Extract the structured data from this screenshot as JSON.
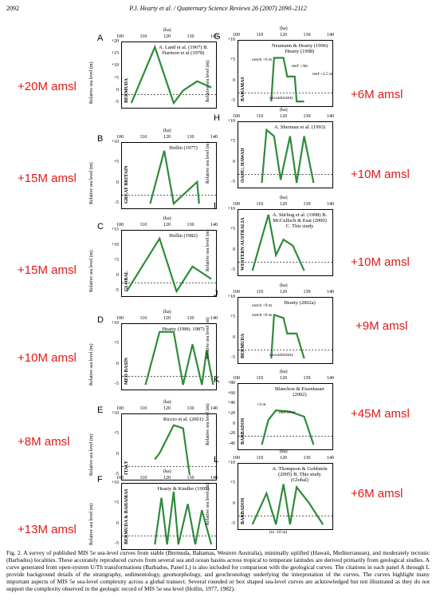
{
  "header": {
    "page_number": "2092",
    "journal": "P.J. Hearty et al. / Quaternary Science Reviews 26 (2007) 2090–2112"
  },
  "axis": {
    "ka_label": "(ka)",
    "ylabel": "Relative sea level (m)",
    "x_ticks": [
      "100",
      "110",
      "120",
      "130",
      "140"
    ]
  },
  "panels": {
    "A": {
      "letter": "A",
      "region": "BERMUDA",
      "cite": "A. Land et al. (1967)\nB. Harmon et al (1978)",
      "yt": [
        "+20",
        "+15",
        "+10",
        "+5",
        "0",
        "-5"
      ],
      "amsl": "+20M amsl"
    },
    "B": {
      "letter": "B",
      "region": "GREAT BRITAIN",
      "cite": "Hollin (1977)",
      "yt": [
        "+10",
        "+5",
        "0",
        "-5"
      ],
      "amsl": "+15M amsl"
    },
    "C": {
      "letter": "C",
      "region": "GLOBAL",
      "cite": "Hollin (1982)",
      "yt": [
        "+15",
        "+10",
        "+5",
        "0",
        "-5"
      ],
      "amsl": "+15M amsl"
    },
    "D": {
      "letter": "D",
      "region": "MED BASIN",
      "cite": "Hearty (1986; 1987)",
      "yt": [
        "+10",
        "+5",
        "0",
        "-5"
      ],
      "amsl": "+10M amsl"
    },
    "E": {
      "letter": "E",
      "region": "ITALY",
      "cite": "Riccio et al. (2001)",
      "yt": [
        "+10",
        "+5",
        "0",
        "-5"
      ],
      "amsl": "+8M amsl"
    },
    "F": {
      "letter": "F",
      "region": "BERMUDA & BAHAMAS",
      "cite": "Hearty & Kindler (1995)",
      "yt": [
        "+10",
        "+5",
        "0",
        "-5"
      ],
      "amsl": "+13M amsl"
    },
    "G": {
      "letter": "G",
      "region": "BAHAMAS",
      "cite": "Neumann & Hearty (1996) Hearty (1998)",
      "yt": [
        "+10",
        "+5",
        "0",
        "-5"
      ],
      "amsl": "+6M amsl"
    },
    "H": {
      "letter": "H",
      "region": "OAHU, HAWAII",
      "cite": "A. Sherman et al. (1993)",
      "yt": [
        "+10",
        "+5",
        "0",
        "-5"
      ],
      "amsl": "+10M amsl"
    },
    "I": {
      "letter": "I",
      "region": "WESTERN AUSTRALIA",
      "cite": "A. Stirling et al. (1998) B. McCulloch & Esat (2000) C. This study",
      "yt": [
        "+10",
        "+5",
        "0",
        "-5"
      ],
      "amsl": "+10M amsl"
    },
    "J": {
      "letter": "J",
      "region": "BERMUDA",
      "cite": "Hearty (2002a)",
      "yt": [
        "+10",
        "+5",
        "0",
        "-5"
      ],
      "amsl": "+9M amsl"
    },
    "K": {
      "letter": "K",
      "region": "BARBADOS",
      "cite": "Blanchon & Eisenhauer (2002)",
      "yt": [
        "+80",
        "+60",
        "+40",
        "+20",
        "0",
        "-20",
        "-40"
      ],
      "amsl": "+45M amsl"
    },
    "L": {
      "letter": "L",
      "region": "BARBADOS",
      "cite": "A. Thompson & Goldstein (2005) B. This study (Global)",
      "yt": [
        "+10",
        "+5",
        "0",
        "-5"
      ],
      "amsl": "+6M amsl"
    }
  },
  "annotations": {
    "G_notch": "notch +6 m",
    "G_reef1": "reef +3m",
    "G_reef2": "reef +2.5 m",
    "G_unconf": "unconformity",
    "J_notch1": "notch +9 m",
    "J_notch2": "notch +6 m",
    "J_unconf": "unconformity",
    "K_reef": "reef level",
    "K_4m": "+4 m",
    "L_to": "(to -10 m)"
  },
  "caption": "Fig. 2. A survey of published MIS 5e sea-level curves from stable (Bermuda, Bahamas, Western Australia), minimally uplifted (Hawaii, Mediterranean), and moderately tectonic (Barbados) localities. These accurately reproduced curves from several sea and ocean basins across tropical to temperate latitudes are derived primarily from geological studies. A curve generated from open-system U/Th transformations (Barbados, Panel L) is also included for comparison with the geological curves. The citations in each panel A through L provide background details of the stratigraphy, sedimentology, geomorphology, and geochronology underlying the interpretation of the curves. The curves highlight many important aspects of MIS 5e sea-level complexity across a global transect. Several rounded or box shaped sea-level curves are acknowledged but not illustrated as they do not support the complexity observed in the geologic record of MIS 5e sea level (Hollin, 1977, 1982).",
  "colors": {
    "curve": "#2e8b3a",
    "amsl": "#e11919"
  }
}
